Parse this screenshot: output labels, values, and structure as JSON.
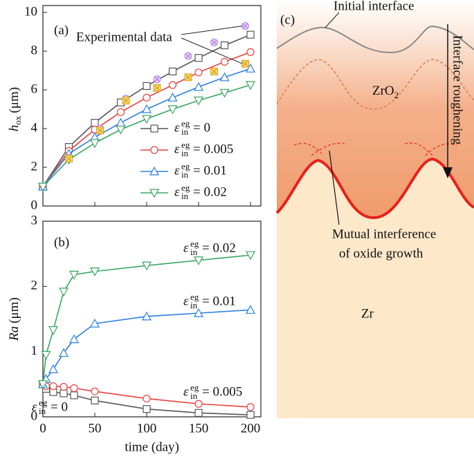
{
  "chart_data": [
    {
      "type": "line",
      "panel_label": "(a)",
      "y_label": {
        "main": "h",
        "sub": "ox",
        "unit": "(μm)"
      },
      "epsilon_symbol": {
        "base": "ε",
        "sub": "in",
        "sup": "eg"
      },
      "xlim": [
        0,
        210
      ],
      "xticks": [
        0,
        50,
        100,
        150,
        200
      ],
      "show_xtick_labels": false,
      "ylim": [
        0,
        10
      ],
      "yticks": [
        0,
        2,
        4,
        6,
        8,
        10
      ],
      "x": [
        0,
        25,
        50,
        75,
        100,
        125,
        150,
        175,
        200
      ],
      "series": [
        {
          "name": "= 0",
          "color": "#555555",
          "marker": "square",
          "values": [
            1.0,
            3.05,
            4.3,
            5.35,
            6.2,
            6.95,
            7.65,
            8.3,
            8.85
          ]
        },
        {
          "name": "= 0.005",
          "color": "#e8413c",
          "marker": "circle",
          "values": [
            1.0,
            2.85,
            3.95,
            4.85,
            5.6,
            6.25,
            6.9,
            7.45,
            7.95
          ]
        },
        {
          "name": "= 0.01",
          "color": "#2c7ee0",
          "marker": "triangle-up",
          "values": [
            1.0,
            2.7,
            3.55,
            4.3,
            5.0,
            5.6,
            6.15,
            6.65,
            7.1
          ]
        },
        {
          "name": "= 0.02",
          "color": "#3aa660",
          "marker": "triangle-down",
          "values": [
            1.0,
            2.4,
            3.25,
            3.95,
            4.5,
            5.0,
            5.45,
            5.85,
            6.25
          ]
        }
      ],
      "experimental": {
        "label": "Experimental data",
        "x": [
          25,
          55,
          80,
          110,
          140,
          165,
          195
        ],
        "series": [
          {
            "color": "#b27ce8",
            "marker": "circle-x",
            "values": [
              2.5,
              4.0,
              5.55,
              6.55,
              7.75,
              8.45,
              9.3
            ]
          },
          {
            "color": "#d99a1c",
            "marker": "square-x",
            "values": [
              2.45,
              3.9,
              5.45,
              6.1,
              6.65,
              6.95,
              7.35
            ]
          }
        ]
      },
      "legend": "lower right"
    },
    {
      "type": "line",
      "panel_label": "(b)",
      "y_label": {
        "main": "Ra",
        "unit": "(μm)"
      },
      "x_label": "time (day)",
      "epsilon_symbol": {
        "base": "ε",
        "sub": "in",
        "sup": "eg"
      },
      "xlim": [
        0,
        210
      ],
      "xticks": [
        0,
        50,
        100,
        150,
        200
      ],
      "show_xtick_labels": true,
      "ylim": [
        0,
        3
      ],
      "yticks": [
        0,
        1,
        2,
        3
      ],
      "x": [
        0,
        3,
        10,
        20,
        30,
        50,
        100,
        150,
        200
      ],
      "series": [
        {
          "name": "= 0",
          "color": "#555555",
          "marker": "square",
          "values": [
            0.5,
            0.43,
            0.38,
            0.36,
            0.33,
            0.25,
            0.12,
            0.06,
            0.03
          ]
        },
        {
          "name": "= 0.005",
          "color": "#e8413c",
          "marker": "circle",
          "values": [
            0.5,
            0.47,
            0.47,
            0.46,
            0.44,
            0.39,
            0.28,
            0.2,
            0.15
          ]
        },
        {
          "name": "= 0.01",
          "color": "#2c7ee0",
          "marker": "triangle-up",
          "values": [
            0.5,
            0.58,
            0.73,
            0.98,
            1.19,
            1.43,
            1.54,
            1.59,
            1.64
          ]
        },
        {
          "name": "= 0.02",
          "color": "#3aa660",
          "marker": "triangle-down",
          "values": [
            0.5,
            0.95,
            1.33,
            1.92,
            2.18,
            2.23,
            2.32,
            2.4,
            2.48
          ]
        }
      ]
    }
  ],
  "diagram": {
    "panel_label": "(c)",
    "initial_interface": "Initial interface",
    "oxide": {
      "main": "ZrO",
      "sub": "2"
    },
    "roughening": "Interface roughening",
    "interference": [
      "Mutual interference",
      "of oxide growth"
    ],
    "metal": "Zr"
  }
}
